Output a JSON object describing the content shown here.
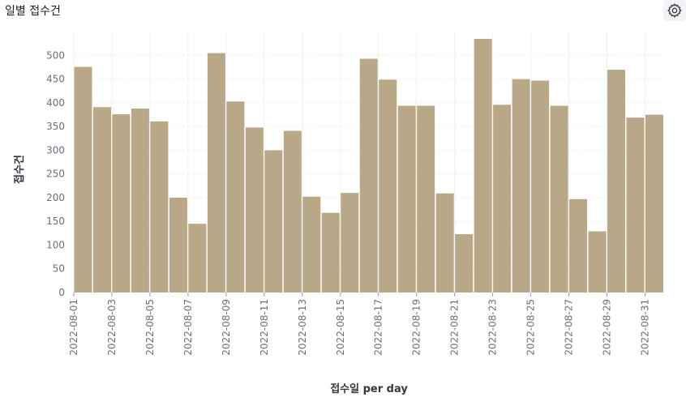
{
  "panel": {
    "title": "일별 접수건"
  },
  "icons": {
    "settings": "gear-icon"
  },
  "colors": {
    "bar": "#b9a888",
    "grid": "#eef0f3",
    "axis_text": "#69707d"
  },
  "chart_data": {
    "type": "bar",
    "title": "",
    "xlabel": "접수일 per day",
    "ylabel": "접수건",
    "ylim": [
      0,
      535
    ],
    "yticks": [
      0,
      50,
      100,
      150,
      200,
      250,
      300,
      350,
      400,
      450,
      500
    ],
    "categories": [
      "2022-08-01",
      "2022-08-02",
      "2022-08-03",
      "2022-08-04",
      "2022-08-05",
      "2022-08-06",
      "2022-08-07",
      "2022-08-08",
      "2022-08-09",
      "2022-08-10",
      "2022-08-11",
      "2022-08-12",
      "2022-08-13",
      "2022-08-14",
      "2022-08-15",
      "2022-08-16",
      "2022-08-17",
      "2022-08-18",
      "2022-08-19",
      "2022-08-20",
      "2022-08-21",
      "2022-08-22",
      "2022-08-23",
      "2022-08-24",
      "2022-08-25",
      "2022-08-26",
      "2022-08-27",
      "2022-08-28",
      "2022-08-29",
      "2022-08-30",
      "2022-08-31"
    ],
    "values": [
      476,
      391,
      376,
      388,
      361,
      200,
      145,
      505,
      403,
      348,
      300,
      341,
      202,
      168,
      210,
      493,
      449,
      394,
      394,
      209,
      123,
      538,
      396,
      450,
      447,
      394,
      197,
      129,
      470,
      369,
      375
    ],
    "xtick_labels": [
      "2022-08-01",
      "2022-08-03",
      "2022-08-05",
      "2022-08-07",
      "2022-08-09",
      "2022-08-11",
      "2022-08-13",
      "2022-08-15",
      "2022-08-17",
      "2022-08-19",
      "2022-08-21",
      "2022-08-23",
      "2022-08-25",
      "2022-08-27",
      "2022-08-29",
      "2022-08-31"
    ],
    "grid": true,
    "legend": "none"
  }
}
